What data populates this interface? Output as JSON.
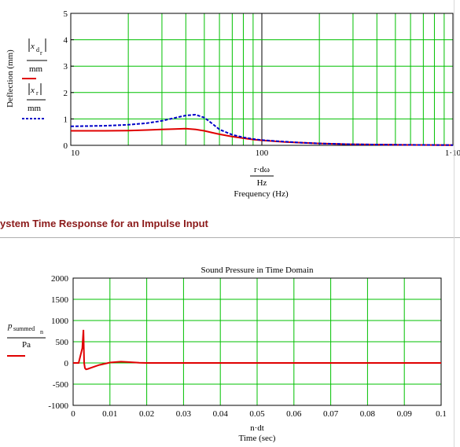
{
  "colors": {
    "grid": "#00c000",
    "series_red": "#e00000",
    "series_blue": "#0000c8",
    "section_title": "#8b1a1a"
  },
  "section": {
    "title": "ystem Time Response for an Impulse Input"
  },
  "chart_data": [
    {
      "type": "line",
      "title": "",
      "xscale": "log",
      "xlim": [
        10,
        1000
      ],
      "ylim": [
        0,
        5
      ],
      "x_ticks": [
        "10",
        "100",
        "1·10"
      ],
      "y_ticks": [
        "0",
        "1",
        "2",
        "3",
        "4",
        "5"
      ],
      "xlabel_expr_num": "r·dω",
      "xlabel_expr_den": "Hz",
      "xlabel": "Frequency (Hz)",
      "ylabel": "Deflection (mm)",
      "legend": {
        "blue_num": "x",
        "blue_sub": "d",
        "blue_subsub": "r",
        "red_num": "x",
        "red_sub": "r",
        "den": "mm"
      },
      "grid": true,
      "series": [
        {
          "color": "red",
          "style": "solid",
          "x": [
            10,
            15,
            20,
            25,
            30,
            35,
            40,
            45,
            50,
            55,
            60,
            70,
            80,
            90,
            100,
            130,
            160,
            200,
            300,
            500,
            1000
          ],
          "y": [
            0.55,
            0.55,
            0.56,
            0.58,
            0.6,
            0.62,
            0.63,
            0.6,
            0.55,
            0.48,
            0.42,
            0.33,
            0.27,
            0.22,
            0.19,
            0.13,
            0.1,
            0.07,
            0.04,
            0.02,
            0.01
          ]
        },
        {
          "color": "blue",
          "style": "dashed",
          "x": [
            10,
            15,
            20,
            25,
            30,
            35,
            40,
            45,
            50,
            55,
            60,
            70,
            80,
            90,
            100,
            130,
            160,
            200,
            300,
            500,
            1000
          ],
          "y": [
            0.72,
            0.74,
            0.78,
            0.84,
            0.93,
            1.04,
            1.13,
            1.16,
            1.05,
            0.82,
            0.6,
            0.4,
            0.3,
            0.24,
            0.2,
            0.14,
            0.1,
            0.07,
            0.04,
            0.02,
            0.01
          ]
        }
      ]
    },
    {
      "type": "line",
      "title": "Sound Pressure in Time Domain",
      "xlim": [
        0,
        0.1
      ],
      "ylim": [
        -1000,
        2000
      ],
      "x_ticks": [
        "0",
        "0.01",
        "0.02",
        "0.03",
        "0.04",
        "0.05",
        "0.06",
        "0.07",
        "0.08",
        "0.09",
        "0.1"
      ],
      "y_ticks": [
        "-1000",
        "-500",
        "0",
        "500",
        "1000",
        "1500",
        "2000"
      ],
      "xlabel_expr": "n·dt",
      "xlabel": "Time (sec)",
      "ylabel_num": "p",
      "ylabel_sub": "summed",
      "ylabel_subsub": "n",
      "ylabel_den": "Pa",
      "grid": true,
      "series": [
        {
          "color": "red",
          "style": "solid",
          "x": [
            0,
            0.0015,
            0.0025,
            0.0028,
            0.003,
            0.0032,
            0.0035,
            0.004,
            0.005,
            0.007,
            0.01,
            0.013,
            0.015,
            0.018,
            0.02,
            0.05,
            0.1
          ],
          "y": [
            0,
            0,
            350,
            780,
            0,
            -120,
            -150,
            -140,
            -110,
            -50,
            10,
            30,
            20,
            5,
            0,
            0,
            0
          ]
        }
      ]
    }
  ]
}
